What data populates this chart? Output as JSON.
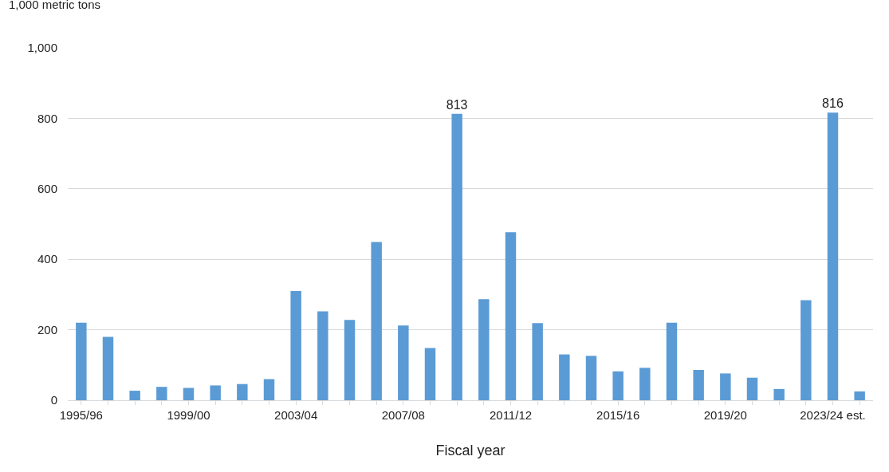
{
  "chart_data": {
    "type": "bar",
    "ylabel": "1,000 metric tons",
    "xlabel": "Fiscal year",
    "categories": [
      "1995/96",
      null,
      null,
      null,
      "1999/00",
      null,
      null,
      null,
      "2003/04",
      null,
      null,
      null,
      "2007/08",
      null,
      null,
      null,
      "2011/12",
      null,
      null,
      null,
      "2015/16",
      null,
      null,
      null,
      "2019/20",
      null,
      null,
      null,
      "2023/24 est.",
      null
    ],
    "values": [
      220,
      180,
      27,
      38,
      35,
      42,
      46,
      60,
      310,
      252,
      228,
      449,
      212,
      148,
      813,
      287,
      477,
      219,
      130,
      126,
      82,
      92,
      220,
      86,
      76,
      64,
      32,
      284,
      816,
      25
    ],
    "value_labels": [
      null,
      null,
      null,
      null,
      null,
      null,
      null,
      null,
      null,
      null,
      null,
      null,
      null,
      null,
      "813",
      null,
      null,
      null,
      null,
      null,
      null,
      null,
      null,
      null,
      null,
      null,
      null,
      null,
      "816",
      null
    ],
    "color": "#5b9bd5",
    "ylim": [
      0,
      1000
    ],
    "yticks": [
      0,
      200,
      400,
      600,
      800,
      {
        "value": 1000,
        "label": "1,000"
      }
    ],
    "grid": "y"
  }
}
